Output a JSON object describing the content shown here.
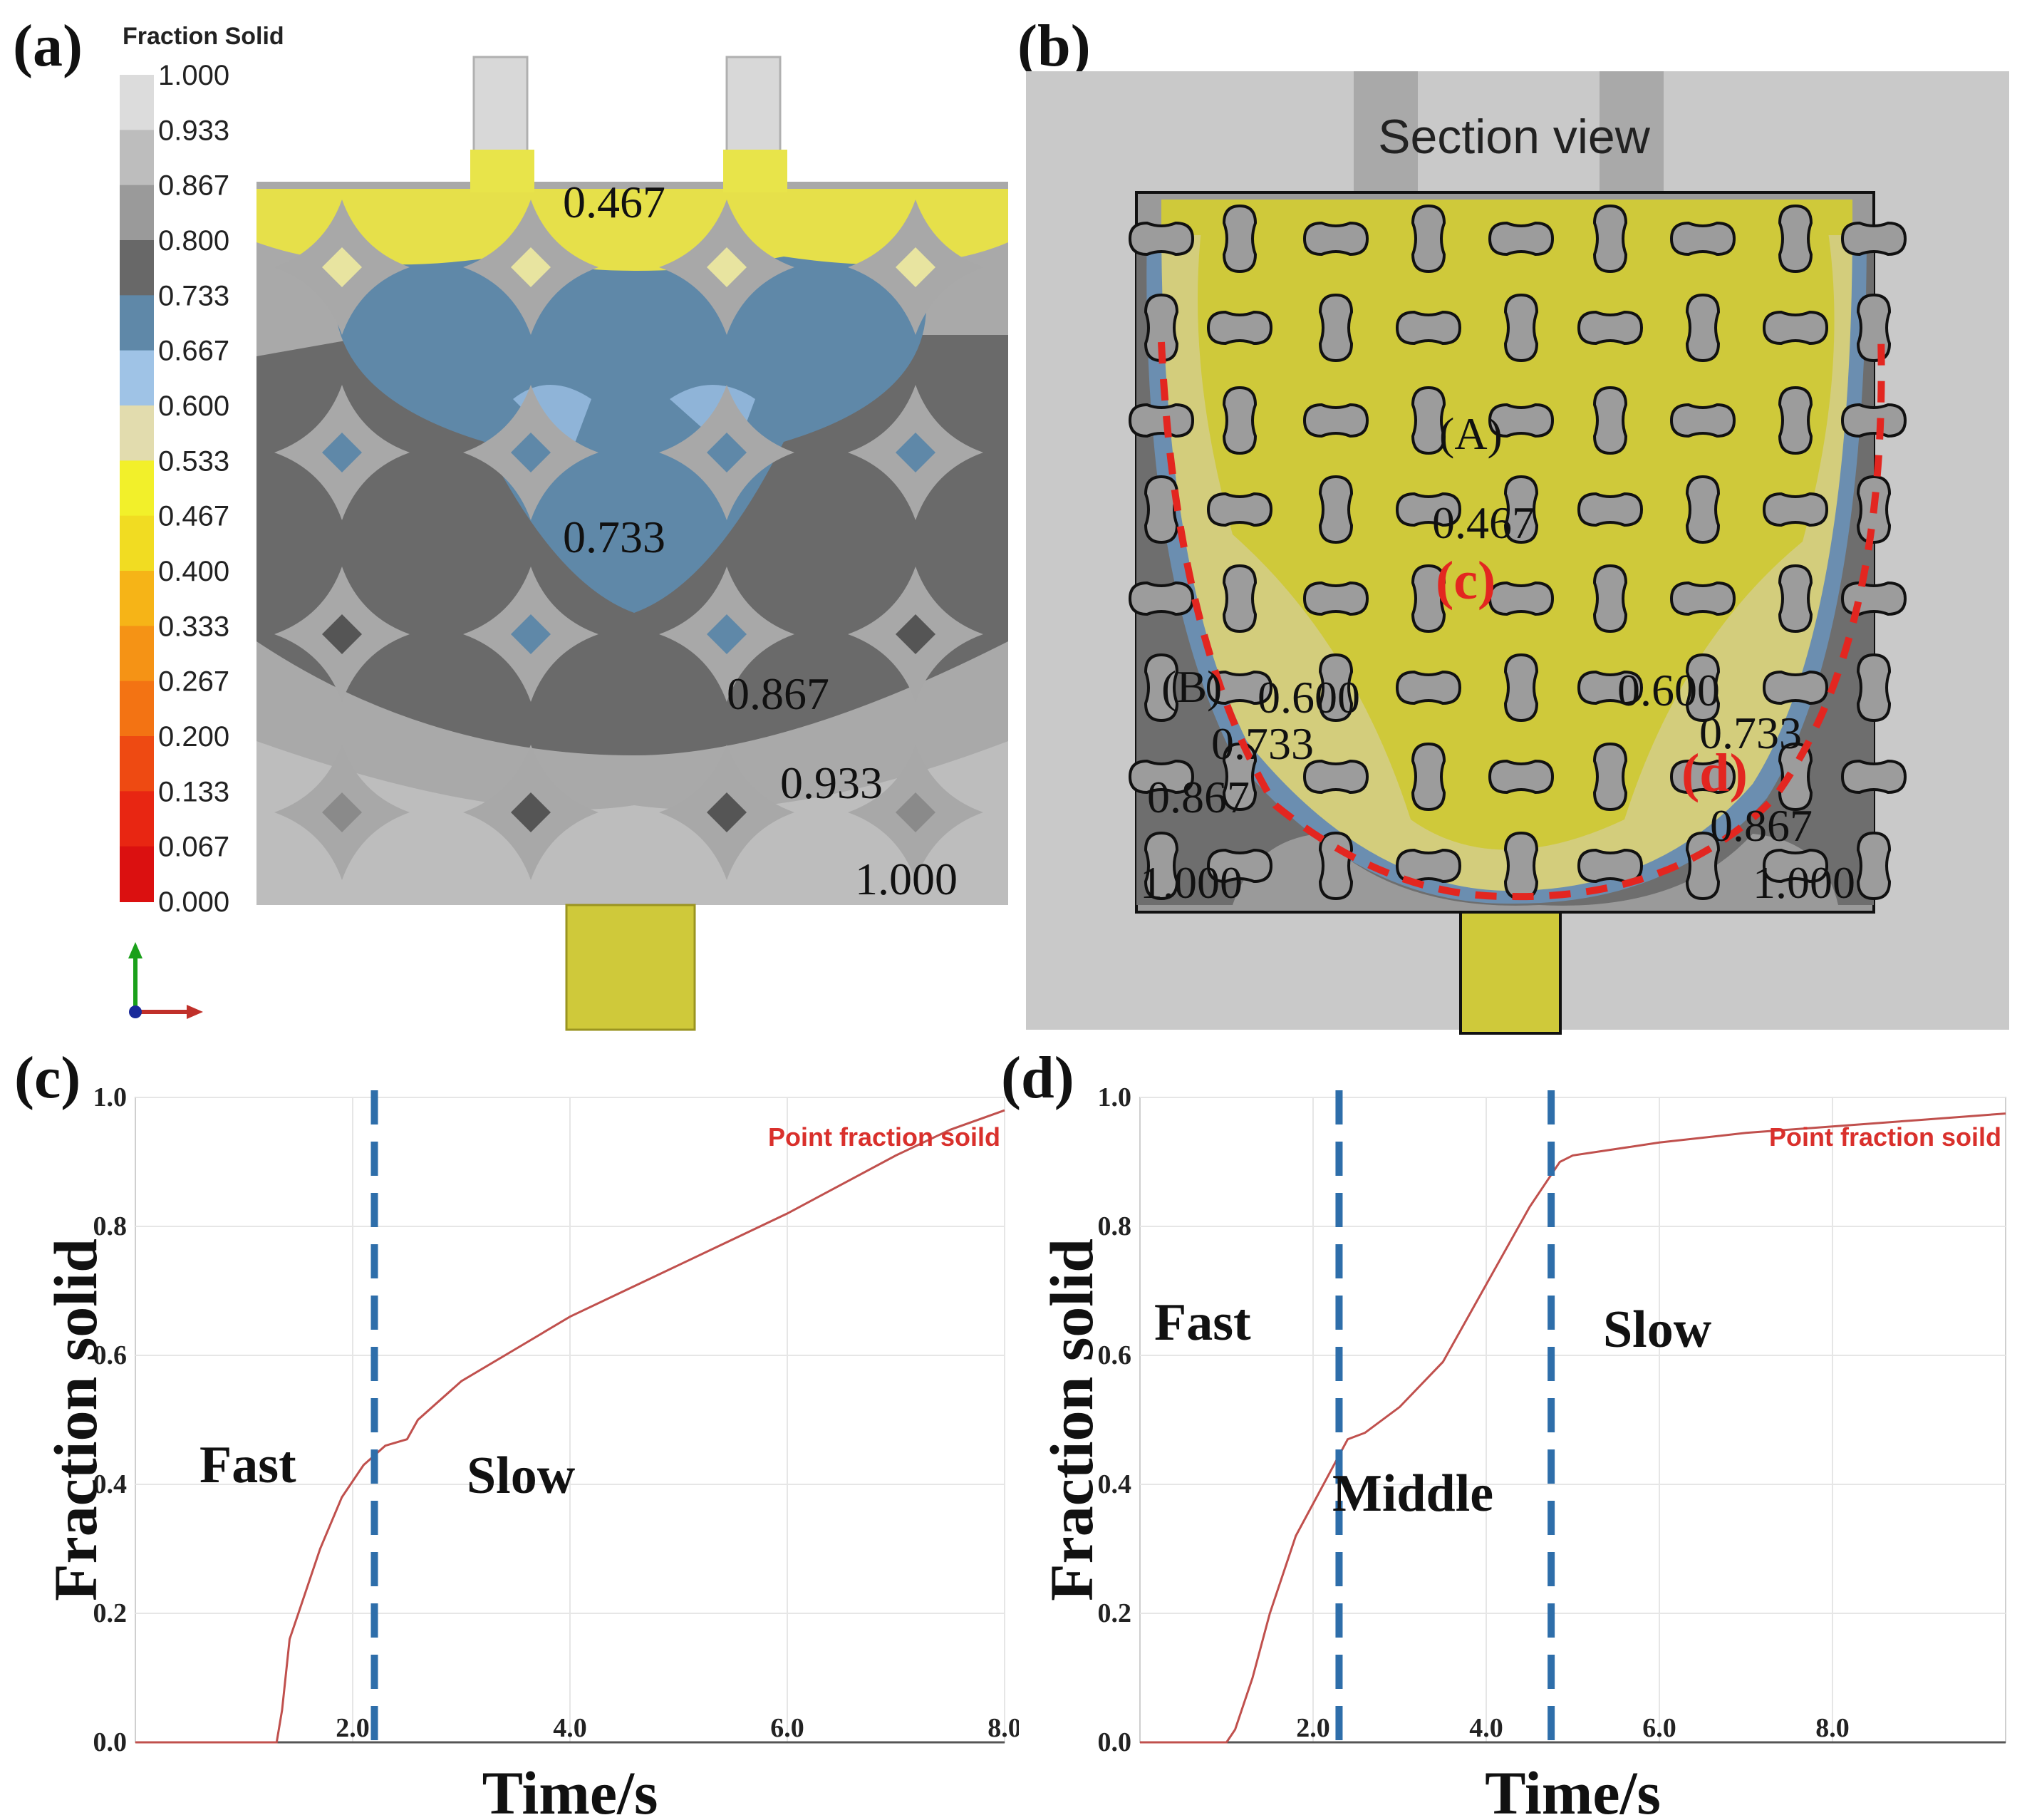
{
  "labels": {
    "a": "(a)",
    "b": "(b)",
    "c": "(c)",
    "d": "(d)"
  },
  "panel_a": {
    "legend_title": "Fraction  Solid",
    "legend": [
      {
        "value": "1.000",
        "color": "#dcdcdc"
      },
      {
        "value": "0.933",
        "color": "#bdbdbd"
      },
      {
        "value": "0.867",
        "color": "#9a9a9a"
      },
      {
        "value": "0.800",
        "color": "#686868"
      },
      {
        "value": "0.733",
        "color": "#5f88a8"
      },
      {
        "value": "0.667",
        "color": "#9fc3e6"
      },
      {
        "value": "0.600",
        "color": "#e2dcae"
      },
      {
        "value": "0.533",
        "color": "#f2f02a"
      },
      {
        "value": "0.467",
        "color": "#f1dc22"
      },
      {
        "value": "0.400",
        "color": "#f6b417"
      },
      {
        "value": "0.333",
        "color": "#f59315"
      },
      {
        "value": "0.267",
        "color": "#f37313"
      },
      {
        "value": "0.200",
        "color": "#ee4a12"
      },
      {
        "value": "0.133",
        "color": "#e82612"
      },
      {
        "value": "0.067",
        "color": "#db1010"
      },
      {
        "value": "0.000",
        "color": "#c40000"
      }
    ],
    "contours": [
      "0.467",
      "0.733",
      "0.867",
      "0.933",
      "1.000"
    ]
  },
  "panel_b": {
    "title": "Section view",
    "point_A": "(A)",
    "point_B": "(B)",
    "point_c": "(c)",
    "point_d": "(d)",
    "contours": {
      "center": "0.467",
      "left_600": "0.600",
      "right_600": "0.600",
      "left_733": "0.733",
      "right_733": "0.733",
      "left_867": "0.867",
      "right_867": "0.867",
      "left_1000": "1.000",
      "right_1000": "1.000"
    }
  },
  "chart_data": [
    {
      "type": "line",
      "panel": "(c)",
      "xlabel": "Time/s",
      "ylabel": "Fraction solid",
      "xlim": [
        0,
        8
      ],
      "ylim": [
        0,
        1
      ],
      "xticks": [
        "2.0",
        "4.0",
        "6.0",
        "8.0"
      ],
      "yticks": [
        "0.0",
        "0.2",
        "0.4",
        "0.6",
        "0.8",
        "1.0"
      ],
      "grid": true,
      "series": [
        {
          "name": "Point fraction soild",
          "color": "#c0504d",
          "x": [
            0,
            1.3,
            1.35,
            1.42,
            1.5,
            1.7,
            1.9,
            2.1,
            2.3,
            2.5,
            2.6,
            3.0,
            3.5,
            4.0,
            5.0,
            6.0,
            7.0,
            7.5,
            8.0
          ],
          "y": [
            0,
            0,
            0.05,
            0.16,
            0.2,
            0.3,
            0.38,
            0.43,
            0.46,
            0.47,
            0.5,
            0.56,
            0.61,
            0.66,
            0.74,
            0.82,
            0.91,
            0.95,
            0.98
          ]
        }
      ],
      "dividers_x": [
        2.2
      ],
      "regions": [
        "Fast",
        "Slow"
      ]
    },
    {
      "type": "line",
      "panel": "(d)",
      "xlabel": "Time/s",
      "ylabel": "Fraction solid",
      "xlim": [
        0,
        10
      ],
      "ylim": [
        0,
        1
      ],
      "xticks": [
        "2.0",
        "4.0",
        "6.0",
        "8.0"
      ],
      "yticks": [
        "0.0",
        "0.2",
        "0.4",
        "0.6",
        "0.8",
        "1.0"
      ],
      "grid": true,
      "series": [
        {
          "name": "Point fraction soild",
          "color": "#c0504d",
          "x": [
            0,
            1.0,
            1.1,
            1.3,
            1.5,
            1.8,
            2.2,
            2.4,
            2.6,
            3.0,
            3.5,
            4.0,
            4.5,
            4.85,
            5.0,
            6.0,
            7.0,
            8.0,
            9.0,
            10.0
          ],
          "y": [
            0,
            0,
            0.02,
            0.1,
            0.2,
            0.32,
            0.42,
            0.47,
            0.48,
            0.52,
            0.59,
            0.71,
            0.83,
            0.9,
            0.91,
            0.93,
            0.945,
            0.955,
            0.965,
            0.975
          ]
        }
      ],
      "dividers_x": [
        2.3,
        4.75
      ],
      "regions": [
        "Fast",
        "Middle",
        "Slow"
      ]
    }
  ]
}
